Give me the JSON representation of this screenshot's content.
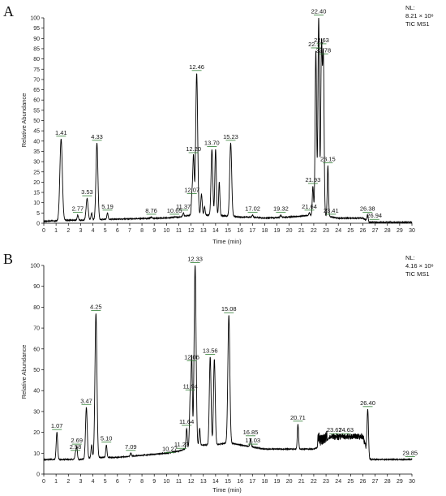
{
  "chart_data": [
    {
      "type": "line",
      "panel_label": "A",
      "info": [
        "NL:",
        "8.21 × 10⁸",
        "TIC  MS1"
      ],
      "xlabel": "Time (min)",
      "ylabel": "Relative Abundance",
      "xlim": [
        0,
        30
      ],
      "ylim": [
        0,
        100
      ],
      "x_ticks": [
        0,
        1,
        2,
        3,
        4,
        5,
        6,
        7,
        8,
        9,
        10,
        11,
        12,
        13,
        14,
        15,
        16,
        17,
        18,
        19,
        20,
        21,
        22,
        23,
        24,
        25,
        26,
        27,
        28,
        29,
        30
      ],
      "y_ticks": [
        0,
        5,
        10,
        15,
        20,
        25,
        30,
        35,
        40,
        45,
        50,
        55,
        60,
        65,
        70,
        75,
        80,
        85,
        90,
        95,
        100
      ],
      "color": "#000000",
      "label_color": "#2e7d32",
      "baseline": [
        [
          0,
          1
        ],
        [
          1,
          1.2
        ],
        [
          2,
          1.5
        ],
        [
          3,
          1.5
        ],
        [
          4,
          1.8
        ],
        [
          6,
          2
        ],
        [
          8,
          2.3
        ],
        [
          10,
          2.6
        ],
        [
          11,
          3
        ],
        [
          12,
          4
        ],
        [
          13,
          4
        ],
        [
          14,
          4
        ],
        [
          16,
          3
        ],
        [
          17,
          3
        ],
        [
          18,
          2.5
        ],
        [
          20,
          3
        ],
        [
          21,
          3.5
        ],
        [
          22,
          4
        ],
        [
          23,
          3.5
        ],
        [
          24,
          2.5
        ],
        [
          26,
          2.5
        ],
        [
          26.5,
          0.5
        ],
        [
          28,
          0.5
        ],
        [
          30,
          0.5
        ]
      ],
      "peaks": [
        {
          "x": 1.41,
          "y": 41,
          "w": 0.1
        },
        {
          "x": 2.77,
          "y": 4,
          "w": 0.05
        },
        {
          "x": 3.53,
          "y": 12,
          "w": 0.08
        },
        {
          "x": 3.9,
          "y": 5,
          "w": 0.05
        },
        {
          "x": 4.33,
          "y": 39,
          "w": 0.08
        },
        {
          "x": 5.19,
          "y": 5,
          "w": 0.05
        },
        {
          "x": 8.76,
          "y": 3,
          "w": 0.05
        },
        {
          "x": 10.65,
          "y": 3,
          "w": 0.05
        },
        {
          "x": 11.37,
          "y": 5,
          "w": 0.05
        },
        {
          "x": 12.07,
          "y": 13,
          "w": 0.05
        },
        {
          "x": 12.2,
          "y": 33,
          "w": 0.06
        },
        {
          "x": 12.46,
          "y": 73,
          "w": 0.08
        },
        {
          "x": 12.85,
          "y": 14,
          "w": 0.06
        },
        {
          "x": 13.1,
          "y": 8,
          "w": 0.05
        },
        {
          "x": 13.7,
          "y": 36,
          "w": 0.07
        },
        {
          "x": 14.0,
          "y": 36,
          "w": 0.06
        },
        {
          "x": 14.3,
          "y": 20,
          "w": 0.05
        },
        {
          "x": 15.23,
          "y": 39,
          "w": 0.08
        },
        {
          "x": 17.02,
          "y": 4,
          "w": 0.05
        },
        {
          "x": 19.32,
          "y": 4,
          "w": 0.05
        },
        {
          "x": 21.64,
          "y": 5,
          "w": 0.05
        },
        {
          "x": 21.93,
          "y": 18,
          "w": 0.05
        },
        {
          "x": 22.17,
          "y": 84,
          "w": 0.06
        },
        {
          "x": 22.4,
          "y": 100,
          "w": 0.06
        },
        {
          "x": 22.63,
          "y": 86,
          "w": 0.06
        },
        {
          "x": 22.78,
          "y": 81,
          "w": 0.06
        },
        {
          "x": 23.15,
          "y": 28,
          "w": 0.05
        },
        {
          "x": 23.41,
          "y": 3,
          "w": 0.05
        },
        {
          "x": 26.38,
          "y": 4,
          "w": 0.05
        }
      ],
      "labels": [
        {
          "text": "1.41",
          "x": 1.41,
          "y": 41
        },
        {
          "text": "2.77",
          "x": 2.77,
          "y": 4
        },
        {
          "text": "3.53",
          "x": 3.53,
          "y": 12
        },
        {
          "text": "4.33",
          "x": 4.33,
          "y": 39
        },
        {
          "text": "5.19",
          "x": 5.19,
          "y": 5
        },
        {
          "text": "8.76",
          "x": 8.76,
          "y": 3
        },
        {
          "text": "10.65",
          "x": 10.65,
          "y": 3
        },
        {
          "text": "11.37",
          "x": 11.37,
          "y": 5
        },
        {
          "text": "12.07",
          "x": 12.07,
          "y": 13
        },
        {
          "text": "12.20",
          "x": 12.2,
          "y": 33
        },
        {
          "text": "12.46",
          "x": 12.46,
          "y": 73
        },
        {
          "text": "13.70",
          "x": 13.7,
          "y": 36
        },
        {
          "text": "15.23",
          "x": 15.23,
          "y": 39
        },
        {
          "text": "17.02",
          "x": 17.02,
          "y": 4
        },
        {
          "text": "19.32",
          "x": 19.32,
          "y": 4
        },
        {
          "text": "21.64",
          "x": 21.64,
          "y": 5
        },
        {
          "text": "21.93",
          "x": 21.93,
          "y": 18
        },
        {
          "text": "22.17",
          "x": 22.17,
          "y": 84
        },
        {
          "text": "22.40",
          "x": 22.4,
          "y": 100
        },
        {
          "text": "22.63",
          "x": 22.63,
          "y": 86
        },
        {
          "text": "22.78",
          "x": 22.78,
          "y": 81
        },
        {
          "text": "23.15",
          "x": 23.15,
          "y": 28
        },
        {
          "text": "23.41",
          "x": 23.41,
          "y": 3
        },
        {
          "text": "26.38",
          "x": 26.38,
          "y": 4
        },
        {
          "text": "26.94",
          "x": 26.94,
          "y": 0.5
        }
      ]
    },
    {
      "type": "line",
      "panel_label": "B",
      "info": [
        "NL:",
        "4.16 × 10⁸",
        "TIC  MS1"
      ],
      "xlabel": "Time (min)",
      "ylabel": "Relative Abundance",
      "xlim": [
        0,
        30
      ],
      "ylim": [
        0,
        100
      ],
      "x_ticks": [
        0,
        1,
        2,
        3,
        4,
        5,
        6,
        7,
        8,
        9,
        10,
        11,
        12,
        13,
        14,
        15,
        16,
        17,
        18,
        19,
        20,
        21,
        22,
        23,
        24,
        25,
        26,
        27,
        28,
        29,
        30
      ],
      "y_ticks": [
        0,
        10,
        20,
        30,
        40,
        50,
        60,
        70,
        80,
        90,
        100
      ],
      "color": "#000000",
      "label_color": "#2e7d32",
      "baseline": [
        [
          0,
          7
        ],
        [
          1,
          7
        ],
        [
          2,
          7
        ],
        [
          3,
          7
        ],
        [
          4,
          8
        ],
        [
          6,
          8
        ],
        [
          8,
          9
        ],
        [
          10,
          10
        ],
        [
          11,
          11
        ],
        [
          12,
          13
        ],
        [
          13,
          14
        ],
        [
          14,
          14
        ],
        [
          15,
          15
        ],
        [
          16,
          14
        ],
        [
          17,
          13
        ],
        [
          18,
          12
        ],
        [
          19,
          12
        ],
        [
          20,
          12
        ],
        [
          21,
          12
        ],
        [
          22,
          12
        ],
        [
          22.9,
          14
        ],
        [
          23.3,
          18
        ],
        [
          23.6,
          18
        ],
        [
          24,
          18
        ],
        [
          25,
          18
        ],
        [
          26,
          18
        ],
        [
          26.5,
          7
        ],
        [
          28,
          7
        ],
        [
          30,
          7
        ]
      ],
      "peaks": [
        {
          "x": 1.07,
          "y": 20,
          "w": 0.06
        },
        {
          "x": 2.58,
          "y": 10,
          "w": 0.05
        },
        {
          "x": 2.69,
          "y": 13,
          "w": 0.05
        },
        {
          "x": 3.47,
          "y": 32,
          "w": 0.07
        },
        {
          "x": 3.9,
          "y": 14,
          "w": 0.05
        },
        {
          "x": 4.25,
          "y": 77,
          "w": 0.08
        },
        {
          "x": 5.1,
          "y": 14,
          "w": 0.05
        },
        {
          "x": 7.09,
          "y": 10,
          "w": 0.05
        },
        {
          "x": 10.27,
          "y": 9,
          "w": 0.05
        },
        {
          "x": 11.23,
          "y": 11,
          "w": 0.05
        },
        {
          "x": 11.64,
          "y": 22,
          "w": 0.05
        },
        {
          "x": 11.94,
          "y": 39,
          "w": 0.06
        },
        {
          "x": 12.06,
          "y": 53,
          "w": 0.05
        },
        {
          "x": 12.33,
          "y": 100,
          "w": 0.08
        },
        {
          "x": 12.7,
          "y": 22,
          "w": 0.05
        },
        {
          "x": 13.56,
          "y": 56,
          "w": 0.07
        },
        {
          "x": 13.9,
          "y": 55,
          "w": 0.07
        },
        {
          "x": 15.08,
          "y": 76,
          "w": 0.08
        },
        {
          "x": 16.85,
          "y": 17,
          "w": 0.05
        },
        {
          "x": 17.03,
          "y": 13,
          "w": 0.05
        },
        {
          "x": 20.71,
          "y": 24,
          "w": 0.05
        },
        {
          "x": 22.4,
          "y": 15,
          "w": 0.05
        },
        {
          "x": 22.6,
          "y": 14,
          "w": 0.05
        },
        {
          "x": 23.67,
          "y": 18,
          "w": 0.05
        },
        {
          "x": 24.63,
          "y": 18,
          "w": 0.05
        },
        {
          "x": 26.4,
          "y": 31,
          "w": 0.06
        },
        {
          "x": 29.85,
          "y": 7,
          "w": 0.05
        }
      ],
      "labels": [
        {
          "text": "1.07",
          "x": 1.07,
          "y": 20
        },
        {
          "text": "2.58",
          "x": 2.58,
          "y": 10
        },
        {
          "text": "2.69",
          "x": 2.69,
          "y": 13
        },
        {
          "text": "3.47",
          "x": 3.47,
          "y": 32
        },
        {
          "text": "4.25",
          "x": 4.25,
          "y": 77
        },
        {
          "text": "5.10",
          "x": 5.1,
          "y": 14
        },
        {
          "text": "7.09",
          "x": 7.09,
          "y": 10
        },
        {
          "text": "10.27",
          "x": 10.27,
          "y": 9
        },
        {
          "text": "11.23",
          "x": 11.23,
          "y": 11
        },
        {
          "text": "11.64",
          "x": 11.64,
          "y": 22
        },
        {
          "text": "11.94",
          "x": 11.94,
          "y": 39
        },
        {
          "text": "12.06",
          "x": 12.06,
          "y": 53
        },
        {
          "text": "12.33",
          "x": 12.33,
          "y": 100
        },
        {
          "text": "13.56",
          "x": 13.56,
          "y": 56
        },
        {
          "text": "15.08",
          "x": 15.08,
          "y": 76
        },
        {
          "text": "16.85",
          "x": 16.85,
          "y": 17
        },
        {
          "text": "17.03",
          "x": 17.03,
          "y": 13
        },
        {
          "text": "20.71",
          "x": 20.71,
          "y": 24
        },
        {
          "text": "23.67",
          "x": 23.67,
          "y": 18
        },
        {
          "text": "24.63",
          "x": 24.63,
          "y": 18
        },
        {
          "text": "26.40",
          "x": 26.4,
          "y": 31
        },
        {
          "text": "29.85",
          "x": 29.85,
          "y": 7
        }
      ]
    }
  ]
}
